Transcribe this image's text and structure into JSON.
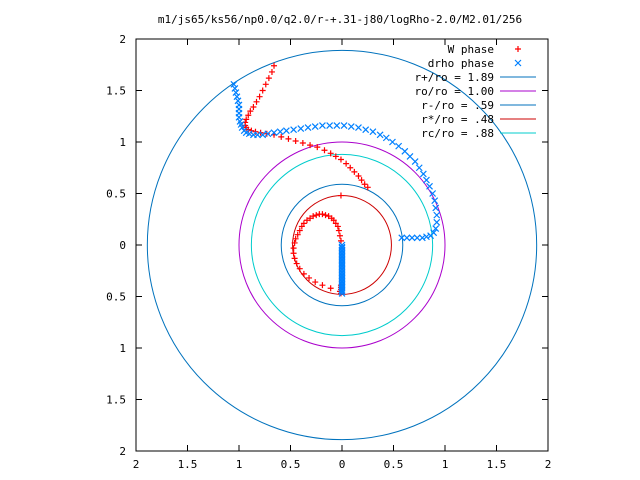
{
  "chart_data": {
    "type": "scatter",
    "title": "m1/js65/ks56/np0.0/q2.0/r-+.31-j80/logRho-2.0/M2.01/256",
    "xlabel": "",
    "ylabel": "",
    "xlim": [
      -2,
      2
    ],
    "ylim": [
      -2,
      2
    ],
    "x_ticks": [
      -2,
      -1.5,
      -1,
      -0.5,
      0,
      0.5,
      1,
      1.5,
      2
    ],
    "x_tick_labels": [
      "2",
      "1.5",
      "1",
      "0.5",
      "0",
      "0.5",
      "1",
      "1.5",
      "2"
    ],
    "y_ticks": [
      2,
      1.5,
      1,
      0.5,
      0,
      -0.5,
      -1,
      -1.5,
      -2
    ],
    "y_tick_labels": [
      "2",
      "1.5",
      "1",
      "0.5",
      "0",
      "0.5",
      "1",
      "1.5",
      "2"
    ],
    "grid": false,
    "legend_position": "top-right",
    "series": [
      {
        "name": "W phase",
        "marker": "plus",
        "color": "#ff0000",
        "x": [
          -0.66,
          -0.68,
          -0.71,
          -0.74,
          -0.77,
          -0.8,
          -0.83,
          -0.86,
          -0.89,
          -0.91,
          -0.93,
          -0.94,
          -0.94,
          -0.93,
          -0.91,
          -0.88,
          -0.84,
          -0.79,
          -0.73,
          -0.66,
          -0.59,
          -0.52,
          -0.45,
          -0.38,
          -0.31,
          -0.24,
          -0.17,
          -0.11,
          -0.06,
          -0.01,
          0.04,
          0.08,
          0.12,
          0.16,
          0.19,
          0.22,
          0.25,
          -0.01,
          -0.02,
          -0.03,
          -0.04,
          -0.06,
          -0.08,
          -0.1,
          -0.13,
          -0.16,
          -0.19,
          -0.22,
          -0.25,
          -0.28,
          -0.31,
          -0.34,
          -0.37,
          -0.39,
          -0.41,
          -0.43,
          -0.45,
          -0.46,
          -0.47,
          -0.47,
          -0.46,
          -0.44,
          -0.41,
          -0.37,
          -0.32,
          -0.26,
          -0.19,
          -0.11,
          -0.02,
          -0.01,
          -0.01,
          -0.01,
          -0.01,
          -0.01,
          -0.01
        ],
        "y": [
          1.74,
          1.68,
          1.62,
          1.56,
          1.5,
          1.44,
          1.39,
          1.34,
          1.3,
          1.26,
          1.22,
          1.19,
          1.16,
          1.14,
          1.12,
          1.11,
          1.1,
          1.09,
          1.08,
          1.07,
          1.05,
          1.03,
          1.01,
          0.99,
          0.97,
          0.95,
          0.92,
          0.89,
          0.86,
          0.83,
          0.79,
          0.75,
          0.71,
          0.67,
          0.63,
          0.59,
          0.56,
          0.04,
          0.09,
          0.14,
          0.18,
          0.21,
          0.24,
          0.26,
          0.28,
          0.29,
          0.3,
          0.3,
          0.29,
          0.28,
          0.26,
          0.24,
          0.21,
          0.18,
          0.14,
          0.1,
          0.06,
          0.02,
          -0.03,
          -0.08,
          -0.13,
          -0.18,
          -0.23,
          -0.28,
          -0.32,
          -0.36,
          -0.39,
          -0.42,
          -0.45,
          0.48,
          -0.47,
          -0.45,
          -0.43,
          -0.41,
          -0.39
        ]
      },
      {
        "name": "drho phase",
        "marker": "cross",
        "color": "#0080ff",
        "x": [
          -1.05,
          -1.04,
          -1.03,
          -1.02,
          -1.01,
          -1.0,
          -1.0,
          -1.0,
          -1.0,
          -0.99,
          -0.98,
          -0.97,
          -0.95,
          -0.93,
          -0.9,
          -0.86,
          -0.82,
          -0.77,
          -0.72,
          -0.66,
          -0.6,
          -0.54,
          -0.47,
          -0.4,
          -0.33,
          -0.26,
          -0.19,
          -0.12,
          -0.05,
          0.02,
          0.09,
          0.16,
          0.23,
          0.3,
          0.37,
          0.43,
          0.49,
          0.55,
          0.61,
          0.66,
          0.71,
          0.75,
          0.79,
          0.82,
          0.85,
          0.88,
          0.9,
          0.91,
          0.92,
          0.92,
          0.91,
          0.89,
          0.86,
          0.82,
          0.78,
          0.73,
          0.68,
          0.63,
          0.58,
          0.0,
          0.0,
          0.0,
          0.0,
          0.0,
          0.0,
          0.0,
          0.0,
          0.0,
          0.0,
          0.0,
          0.0,
          0.0,
          0.0,
          0.0,
          0.0,
          0.0,
          0.0,
          0.0,
          0.0,
          0.0,
          0.0,
          0.0,
          0.0,
          0.0,
          0.0,
          0.0,
          0.0,
          0.0,
          0.0,
          0.0,
          0.0
        ],
        "y": [
          1.56,
          1.52,
          1.48,
          1.44,
          1.4,
          1.36,
          1.32,
          1.28,
          1.24,
          1.2,
          1.17,
          1.14,
          1.11,
          1.09,
          1.08,
          1.07,
          1.07,
          1.07,
          1.08,
          1.09,
          1.1,
          1.11,
          1.12,
          1.13,
          1.14,
          1.15,
          1.16,
          1.16,
          1.16,
          1.16,
          1.15,
          1.14,
          1.12,
          1.1,
          1.07,
          1.04,
          1.0,
          0.96,
          0.91,
          0.86,
          0.81,
          0.75,
          0.69,
          0.63,
          0.57,
          0.5,
          0.43,
          0.36,
          0.29,
          0.22,
          0.16,
          0.12,
          0.09,
          0.08,
          0.07,
          0.07,
          0.07,
          0.07,
          0.07,
          0.0,
          -0.03,
          -0.06,
          -0.09,
          -0.12,
          -0.15,
          -0.18,
          -0.21,
          -0.24,
          -0.27,
          -0.3,
          -0.33,
          -0.36,
          -0.39,
          -0.42,
          -0.45,
          -0.47,
          -0.02,
          -0.05,
          -0.08,
          -0.11,
          -0.14,
          -0.17,
          -0.2,
          -0.23,
          -0.26,
          -0.29,
          -0.32,
          -0.35,
          -0.38,
          -0.41,
          -0.44
        ]
      }
    ],
    "circles": [
      {
        "label": "r+/ro = 1.89",
        "radius": 1.89,
        "color": "#0072bd"
      },
      {
        "label": "ro/ro = 1.00",
        "radius": 1.0,
        "color": "#aa00cc"
      },
      {
        "label": "r-/ro = .59",
        "radius": 0.59,
        "color": "#0072bd"
      },
      {
        "label": "r*/ro = .48",
        "radius": 0.48,
        "color": "#cc0000"
      },
      {
        "label": "rc/ro = .88",
        "radius": 0.88,
        "color": "#00cccc"
      }
    ]
  }
}
